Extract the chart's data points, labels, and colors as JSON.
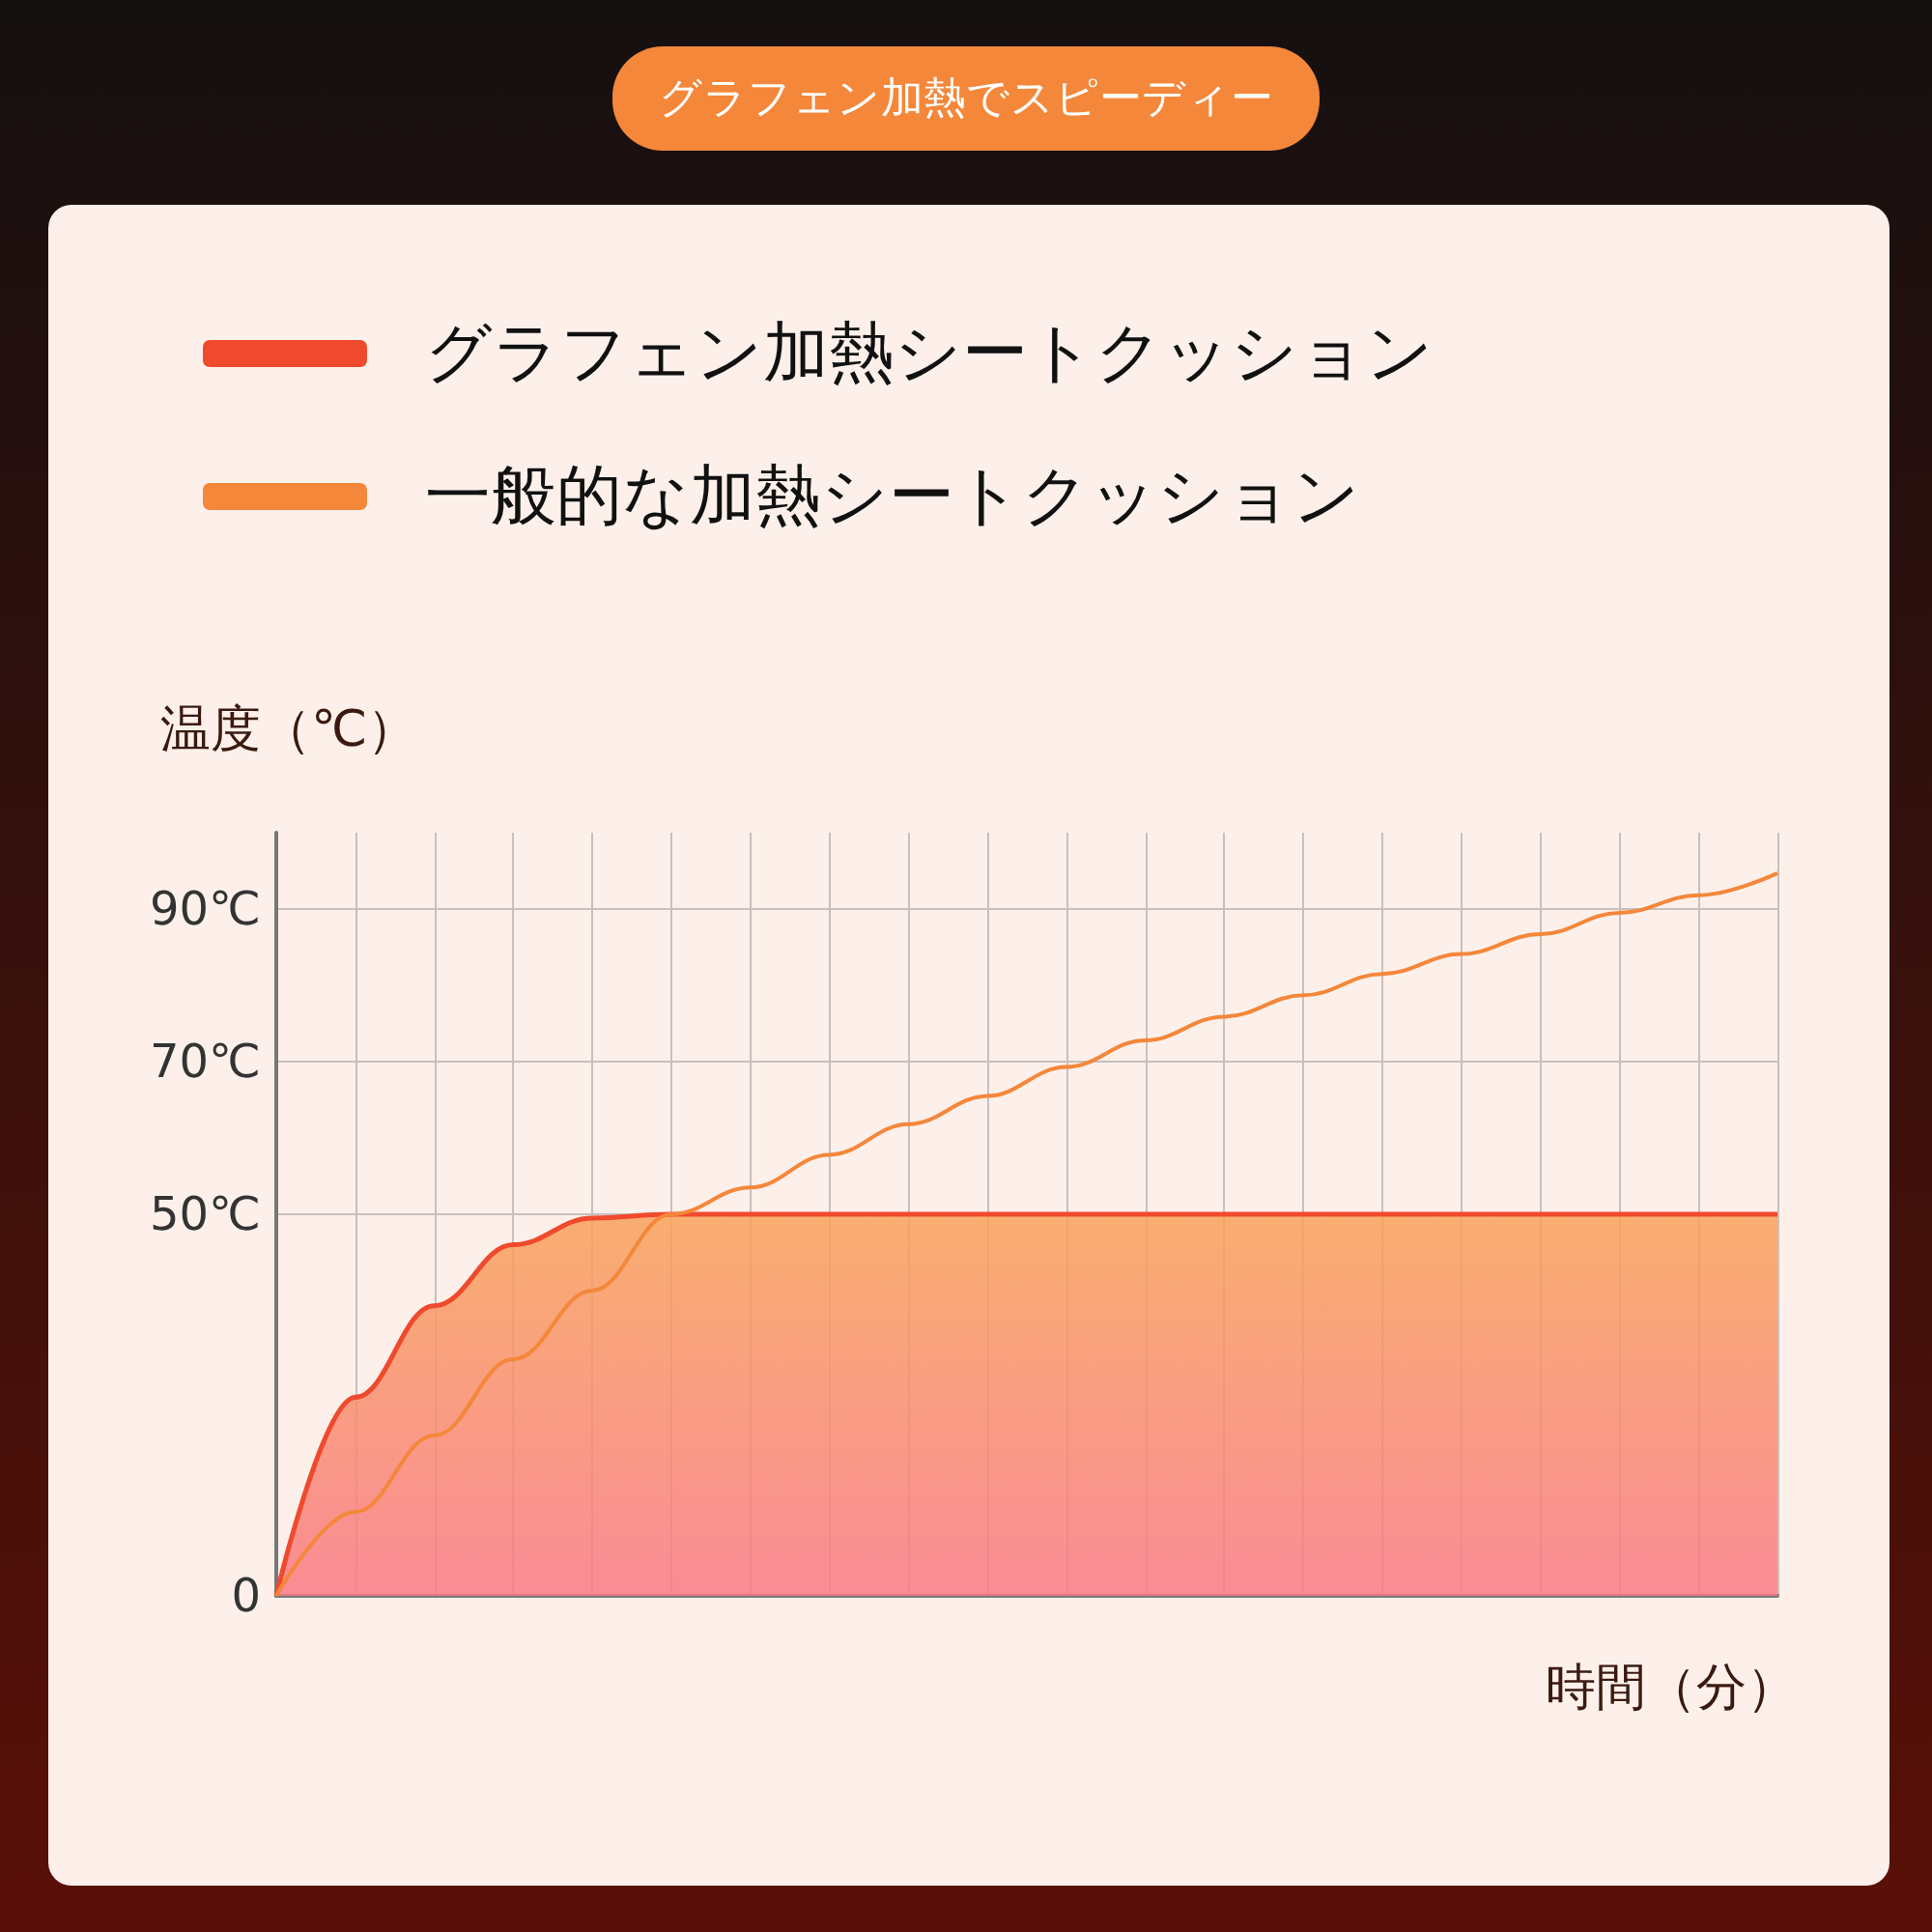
{
  "chart_data": {
    "type": "line",
    "title": "グラフェン加熱でスピーディー",
    "ylabel": "温度（℃）",
    "xlabel": "時間（分）",
    "categories": [
      null,
      null,
      null,
      null,
      null,
      null,
      null,
      null,
      null,
      null,
      null,
      null,
      null,
      null,
      null,
      null,
      null,
      null,
      null,
      null
    ],
    "series": [
      {
        "name": "グラフェン加熱シートクッション",
        "type": "area",
        "color": "#f04a2e",
        "values": [
          0,
          26,
          38,
          46,
          49.5,
          50,
          50,
          50,
          50,
          50,
          50,
          50,
          50,
          50,
          50,
          50,
          50,
          50,
          50,
          50
        ]
      },
      {
        "name": "一般的な加熱シートクッション",
        "type": "line",
        "color": "#f4873a",
        "values": [
          0,
          11,
          21,
          31,
          40,
          50,
          53.5,
          57.8,
          61.8,
          65.5,
          69.3,
          72.8,
          75.9,
          78.7,
          81.5,
          84.1,
          86.7,
          89.5,
          91.8,
          94.7
        ]
      }
    ],
    "ylim": [
      0,
      100
    ],
    "yticks": [
      0,
      {
        "value": 50,
        "label": "50℃"
      },
      {
        "value": 70,
        "label": "70℃"
      },
      {
        "value": 90,
        "label": "90℃"
      }
    ],
    "grid": true,
    "legend": "top left",
    "marker": "none",
    "line_style": "solid"
  }
}
